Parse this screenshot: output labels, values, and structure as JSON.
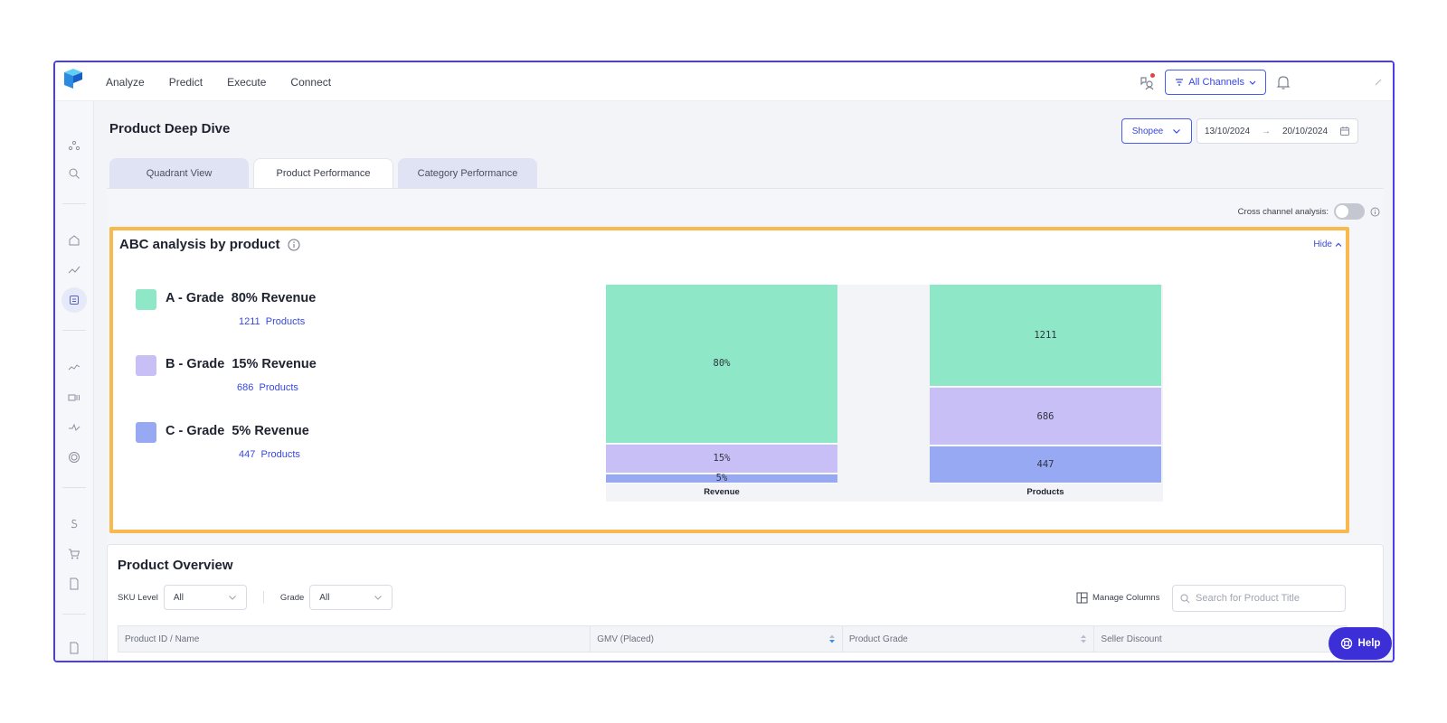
{
  "topbar": {
    "nav": [
      "Analyze",
      "Predict",
      "Execute",
      "Connect"
    ],
    "channels_label": "All Channels"
  },
  "header": {
    "page_title": "Product Deep Dive",
    "channel_select": "Shopee",
    "date_from": "13/10/2024",
    "date_arrow": "→",
    "date_to": "20/10/2024"
  },
  "tabs": [
    {
      "label": "Quadrant View"
    },
    {
      "label": "Product Performance"
    },
    {
      "label": "Category Performance"
    }
  ],
  "cross_channel_label": "Cross channel analysis:",
  "abc": {
    "title": "ABC analysis by product",
    "hide_label": "Hide",
    "grades": [
      {
        "label": "A - Grade",
        "revenue": "80% Revenue",
        "count": "1211",
        "unit": "Products",
        "color": "#8ee8c8"
      },
      {
        "label": "B - Grade",
        "revenue": "15% Revenue",
        "count": "686",
        "unit": "Products",
        "color": "#c9bff7"
      },
      {
        "label": "C - Grade",
        "revenue": "5% Revenue",
        "count": "447",
        "unit": "Products",
        "color": "#98a9f3"
      }
    ]
  },
  "chart_data": {
    "type": "bar",
    "stacked": true,
    "categories": [
      "Revenue",
      "Products"
    ],
    "series": [
      {
        "values": [
          80,
          1211
        ],
        "labels": [
          "80%",
          "1211"
        ],
        "color": "#8ee8c8"
      },
      {
        "values": [
          15,
          686
        ],
        "labels": [
          "15%",
          "686"
        ],
        "color": "#c9bff7"
      },
      {
        "values": [
          5,
          447
        ],
        "labels": [
          "5%",
          "447"
        ],
        "color": "#98a9f3"
      }
    ]
  },
  "overview": {
    "title": "Product Overview",
    "sku_label": "SKU Level",
    "sku_value": "All",
    "grade_label": "Grade",
    "grade_value": "All",
    "manage_columns": "Manage Columns",
    "search_placeholder": "Search for Product Title",
    "columns": [
      "Product ID / Name",
      "GMV (Placed)",
      "Product Grade",
      "Seller Discount"
    ]
  },
  "help_label": "Help"
}
